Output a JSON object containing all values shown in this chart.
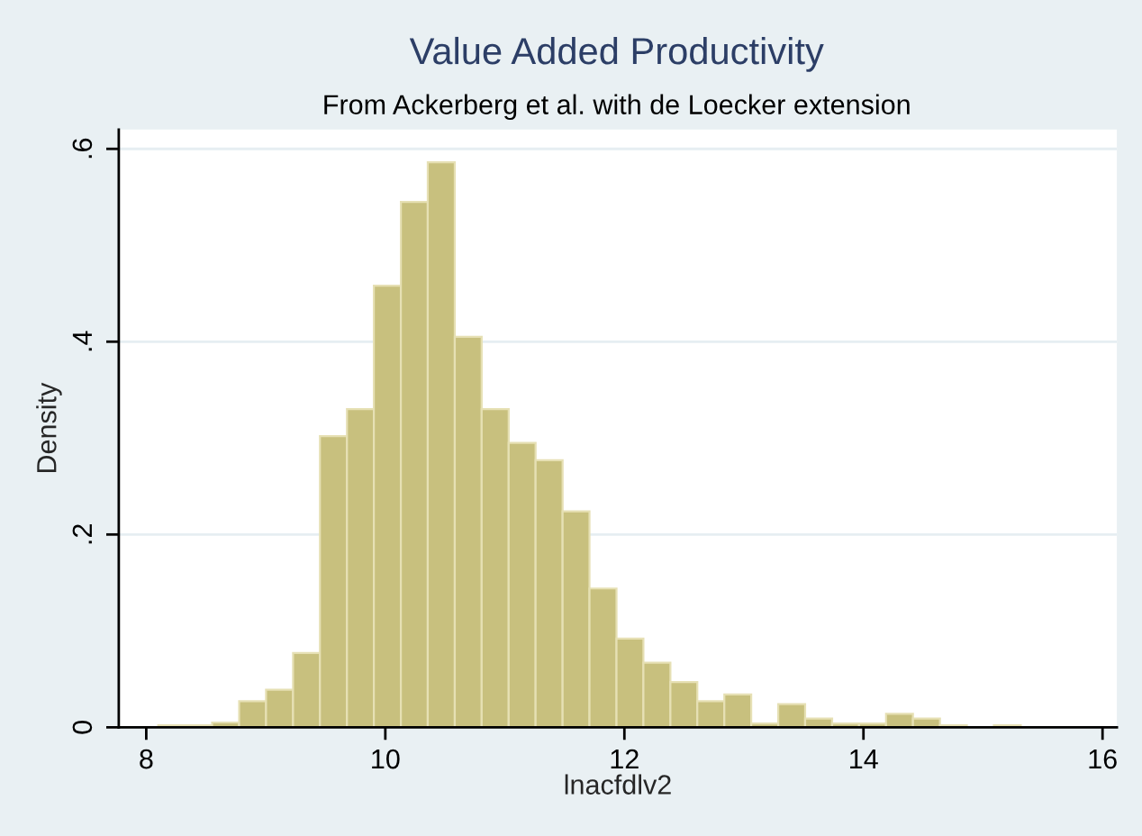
{
  "chart_data": {
    "type": "histogram",
    "title": "Value Added Productivity",
    "subtitle": "From Ackerberg et al. with de Loecker extension",
    "xlabel": "lnacfdlv2",
    "ylabel": "Density",
    "bins": [
      8.1,
      8.326,
      8.551,
      8.777,
      9.002,
      9.228,
      9.453,
      9.679,
      9.904,
      10.13,
      10.355,
      10.581,
      10.806,
      11.032,
      11.257,
      11.483,
      11.708,
      11.934,
      12.159,
      12.385,
      12.61,
      12.836,
      13.061,
      13.287,
      13.512,
      13.738,
      13.963,
      14.189,
      14.414,
      14.64,
      14.865,
      15.091,
      15.316
    ],
    "values": [
      0.002,
      0.002,
      0.005,
      0.027,
      0.039,
      0.077,
      0.302,
      0.33,
      0.458,
      0.545,
      0.586,
      0.405,
      0.33,
      0.295,
      0.277,
      0.224,
      0.144,
      0.092,
      0.067,
      0.047,
      0.027,
      0.034,
      0.004,
      0.024,
      0.009,
      0.004,
      0.004,
      0.014,
      0.009,
      0.002,
      0,
      0.002
    ],
    "color": "#c8c07e",
    "xlim": [
      7.77,
      16.12
    ],
    "xticks": [
      8,
      10,
      12,
      14,
      16
    ],
    "ylim": [
      0,
      0.62
    ],
    "yticks": [
      0,
      {
        "value": 0.2,
        "label": ".2"
      },
      {
        "value": 0.4,
        "label": ".4"
      },
      {
        "value": 0.6,
        "label": ".6"
      }
    ],
    "grid": "y"
  }
}
